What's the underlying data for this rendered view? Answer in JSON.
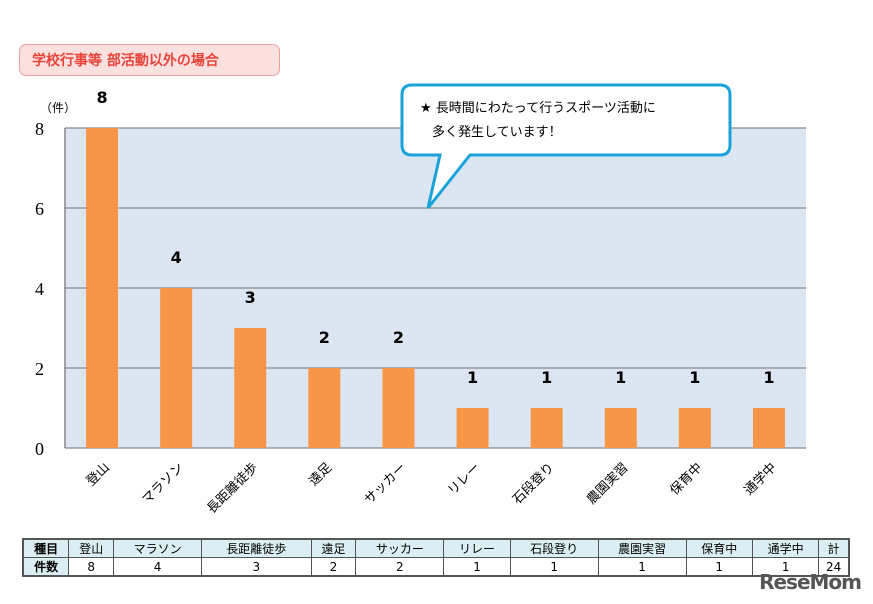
{
  "header": {
    "title": "学校行事等 部活動以外の場合"
  },
  "callout": {
    "line1": "★ 長時間にわたって行うスポーツ活動に",
    "line2": "多く発生しています！"
  },
  "chart_data": {
    "type": "bar",
    "ylabel": "（件）",
    "ylim": [
      0,
      8
    ],
    "yticks": [
      0,
      2,
      4,
      6,
      8
    ],
    "grid": true,
    "categories": [
      "登山",
      "マラソン",
      "長距離徒歩",
      "遠足",
      "サッカー",
      "リレー",
      "石段登り",
      "農園実習",
      "保育中",
      "通学中"
    ],
    "values": [
      8,
      4,
      3,
      2,
      2,
      1,
      1,
      1,
      1,
      1
    ],
    "bar_color": "#f79646",
    "plot_bg": "#dce6f2"
  },
  "table": {
    "row1_label": "種目",
    "row2_label": "件数",
    "headers": [
      "登山",
      "マラソン",
      "長距離徒歩",
      "遠足",
      "サッカー",
      "リレー",
      "石段登り",
      "農園実習",
      "保育中",
      "通学中",
      "計"
    ],
    "values": [
      "8",
      "4",
      "3",
      "2",
      "2",
      "1",
      "1",
      "1",
      "1",
      "1",
      "24"
    ]
  },
  "watermark": "ReseMom"
}
